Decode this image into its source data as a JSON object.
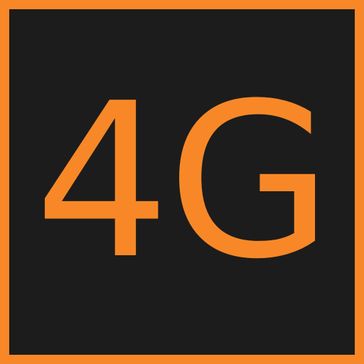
{
  "icon": {
    "label": "4G",
    "name": "4g-network-icon",
    "colors": {
      "accent": "#f88827",
      "background": "#1c1c1c"
    }
  }
}
